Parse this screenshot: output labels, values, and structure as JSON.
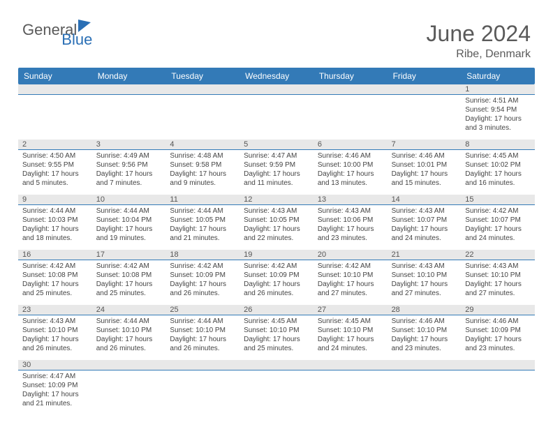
{
  "logo": {
    "word1": "General",
    "word2": "Blue"
  },
  "header": {
    "title": "June 2024",
    "location": "Ribe, Denmark"
  },
  "colors": {
    "header_bg": "#337ab7",
    "header_text": "#ffffff",
    "daynum_bg": "#e8e8e8",
    "daynum_border": "#337ab7",
    "text": "#444444"
  },
  "day_names": [
    "Sunday",
    "Monday",
    "Tuesday",
    "Wednesday",
    "Thursday",
    "Friday",
    "Saturday"
  ],
  "weeks": [
    [
      {
        "n": "",
        "sr": "",
        "ss": "",
        "d1": "",
        "d2": ""
      },
      {
        "n": "",
        "sr": "",
        "ss": "",
        "d1": "",
        "d2": ""
      },
      {
        "n": "",
        "sr": "",
        "ss": "",
        "d1": "",
        "d2": ""
      },
      {
        "n": "",
        "sr": "",
        "ss": "",
        "d1": "",
        "d2": ""
      },
      {
        "n": "",
        "sr": "",
        "ss": "",
        "d1": "",
        "d2": ""
      },
      {
        "n": "",
        "sr": "",
        "ss": "",
        "d1": "",
        "d2": ""
      },
      {
        "n": "1",
        "sr": "Sunrise: 4:51 AM",
        "ss": "Sunset: 9:54 PM",
        "d1": "Daylight: 17 hours",
        "d2": "and 3 minutes."
      }
    ],
    [
      {
        "n": "2",
        "sr": "Sunrise: 4:50 AM",
        "ss": "Sunset: 9:55 PM",
        "d1": "Daylight: 17 hours",
        "d2": "and 5 minutes."
      },
      {
        "n": "3",
        "sr": "Sunrise: 4:49 AM",
        "ss": "Sunset: 9:56 PM",
        "d1": "Daylight: 17 hours",
        "d2": "and 7 minutes."
      },
      {
        "n": "4",
        "sr": "Sunrise: 4:48 AM",
        "ss": "Sunset: 9:58 PM",
        "d1": "Daylight: 17 hours",
        "d2": "and 9 minutes."
      },
      {
        "n": "5",
        "sr": "Sunrise: 4:47 AM",
        "ss": "Sunset: 9:59 PM",
        "d1": "Daylight: 17 hours",
        "d2": "and 11 minutes."
      },
      {
        "n": "6",
        "sr": "Sunrise: 4:46 AM",
        "ss": "Sunset: 10:00 PM",
        "d1": "Daylight: 17 hours",
        "d2": "and 13 minutes."
      },
      {
        "n": "7",
        "sr": "Sunrise: 4:46 AM",
        "ss": "Sunset: 10:01 PM",
        "d1": "Daylight: 17 hours",
        "d2": "and 15 minutes."
      },
      {
        "n": "8",
        "sr": "Sunrise: 4:45 AM",
        "ss": "Sunset: 10:02 PM",
        "d1": "Daylight: 17 hours",
        "d2": "and 16 minutes."
      }
    ],
    [
      {
        "n": "9",
        "sr": "Sunrise: 4:44 AM",
        "ss": "Sunset: 10:03 PM",
        "d1": "Daylight: 17 hours",
        "d2": "and 18 minutes."
      },
      {
        "n": "10",
        "sr": "Sunrise: 4:44 AM",
        "ss": "Sunset: 10:04 PM",
        "d1": "Daylight: 17 hours",
        "d2": "and 19 minutes."
      },
      {
        "n": "11",
        "sr": "Sunrise: 4:44 AM",
        "ss": "Sunset: 10:05 PM",
        "d1": "Daylight: 17 hours",
        "d2": "and 21 minutes."
      },
      {
        "n": "12",
        "sr": "Sunrise: 4:43 AM",
        "ss": "Sunset: 10:05 PM",
        "d1": "Daylight: 17 hours",
        "d2": "and 22 minutes."
      },
      {
        "n": "13",
        "sr": "Sunrise: 4:43 AM",
        "ss": "Sunset: 10:06 PM",
        "d1": "Daylight: 17 hours",
        "d2": "and 23 minutes."
      },
      {
        "n": "14",
        "sr": "Sunrise: 4:43 AM",
        "ss": "Sunset: 10:07 PM",
        "d1": "Daylight: 17 hours",
        "d2": "and 24 minutes."
      },
      {
        "n": "15",
        "sr": "Sunrise: 4:42 AM",
        "ss": "Sunset: 10:07 PM",
        "d1": "Daylight: 17 hours",
        "d2": "and 24 minutes."
      }
    ],
    [
      {
        "n": "16",
        "sr": "Sunrise: 4:42 AM",
        "ss": "Sunset: 10:08 PM",
        "d1": "Daylight: 17 hours",
        "d2": "and 25 minutes."
      },
      {
        "n": "17",
        "sr": "Sunrise: 4:42 AM",
        "ss": "Sunset: 10:08 PM",
        "d1": "Daylight: 17 hours",
        "d2": "and 25 minutes."
      },
      {
        "n": "18",
        "sr": "Sunrise: 4:42 AM",
        "ss": "Sunset: 10:09 PM",
        "d1": "Daylight: 17 hours",
        "d2": "and 26 minutes."
      },
      {
        "n": "19",
        "sr": "Sunrise: 4:42 AM",
        "ss": "Sunset: 10:09 PM",
        "d1": "Daylight: 17 hours",
        "d2": "and 26 minutes."
      },
      {
        "n": "20",
        "sr": "Sunrise: 4:42 AM",
        "ss": "Sunset: 10:10 PM",
        "d1": "Daylight: 17 hours",
        "d2": "and 27 minutes."
      },
      {
        "n": "21",
        "sr": "Sunrise: 4:43 AM",
        "ss": "Sunset: 10:10 PM",
        "d1": "Daylight: 17 hours",
        "d2": "and 27 minutes."
      },
      {
        "n": "22",
        "sr": "Sunrise: 4:43 AM",
        "ss": "Sunset: 10:10 PM",
        "d1": "Daylight: 17 hours",
        "d2": "and 27 minutes."
      }
    ],
    [
      {
        "n": "23",
        "sr": "Sunrise: 4:43 AM",
        "ss": "Sunset: 10:10 PM",
        "d1": "Daylight: 17 hours",
        "d2": "and 26 minutes."
      },
      {
        "n": "24",
        "sr": "Sunrise: 4:44 AM",
        "ss": "Sunset: 10:10 PM",
        "d1": "Daylight: 17 hours",
        "d2": "and 26 minutes."
      },
      {
        "n": "25",
        "sr": "Sunrise: 4:44 AM",
        "ss": "Sunset: 10:10 PM",
        "d1": "Daylight: 17 hours",
        "d2": "and 26 minutes."
      },
      {
        "n": "26",
        "sr": "Sunrise: 4:45 AM",
        "ss": "Sunset: 10:10 PM",
        "d1": "Daylight: 17 hours",
        "d2": "and 25 minutes."
      },
      {
        "n": "27",
        "sr": "Sunrise: 4:45 AM",
        "ss": "Sunset: 10:10 PM",
        "d1": "Daylight: 17 hours",
        "d2": "and 24 minutes."
      },
      {
        "n": "28",
        "sr": "Sunrise: 4:46 AM",
        "ss": "Sunset: 10:10 PM",
        "d1": "Daylight: 17 hours",
        "d2": "and 23 minutes."
      },
      {
        "n": "29",
        "sr": "Sunrise: 4:46 AM",
        "ss": "Sunset: 10:09 PM",
        "d1": "Daylight: 17 hours",
        "d2": "and 23 minutes."
      }
    ],
    [
      {
        "n": "30",
        "sr": "Sunrise: 4:47 AM",
        "ss": "Sunset: 10:09 PM",
        "d1": "Daylight: 17 hours",
        "d2": "and 21 minutes."
      },
      {
        "n": "",
        "sr": "",
        "ss": "",
        "d1": "",
        "d2": ""
      },
      {
        "n": "",
        "sr": "",
        "ss": "",
        "d1": "",
        "d2": ""
      },
      {
        "n": "",
        "sr": "",
        "ss": "",
        "d1": "",
        "d2": ""
      },
      {
        "n": "",
        "sr": "",
        "ss": "",
        "d1": "",
        "d2": ""
      },
      {
        "n": "",
        "sr": "",
        "ss": "",
        "d1": "",
        "d2": ""
      },
      {
        "n": "",
        "sr": "",
        "ss": "",
        "d1": "",
        "d2": ""
      }
    ]
  ]
}
